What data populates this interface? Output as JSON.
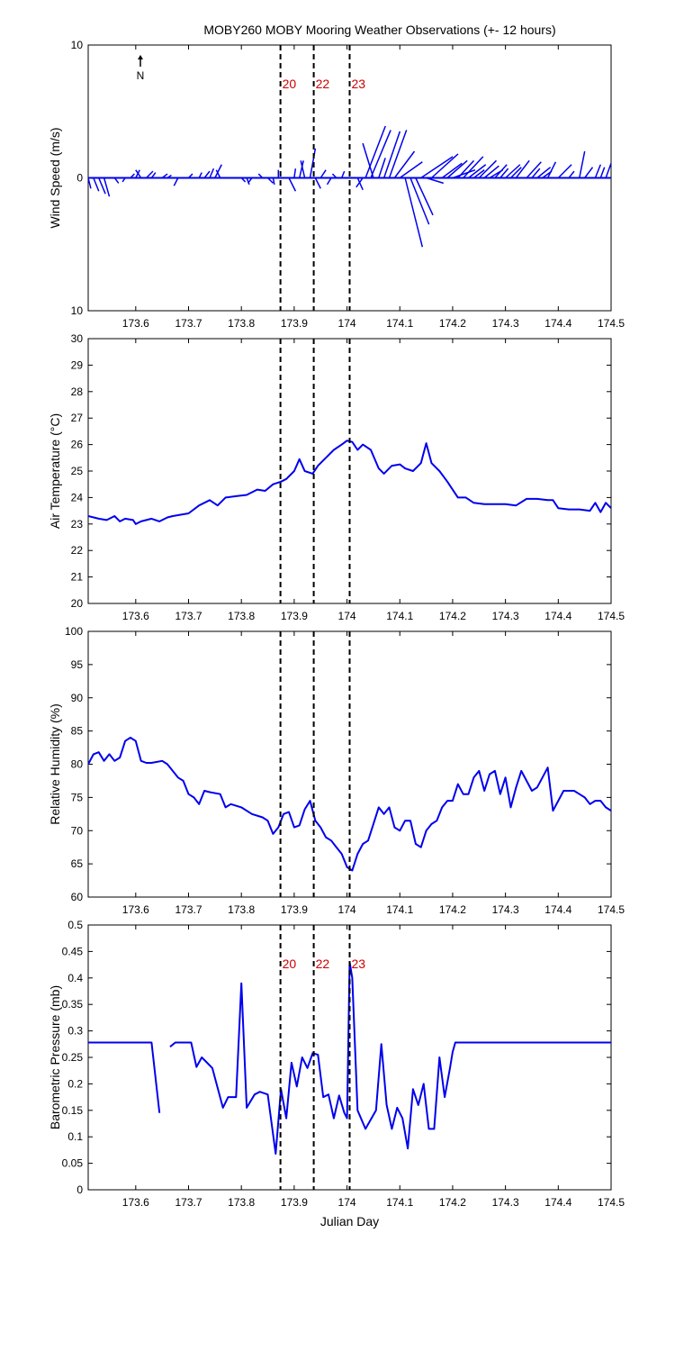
{
  "figure_title": "MOBY260 MOBY Mooring Weather Observations (+- 12 hours)",
  "north_label": "N",
  "colors": {
    "series": "#0000ee",
    "marker_line": "#000000",
    "marker_text": "#cc0000",
    "axes": "#000000"
  },
  "markers": {
    "x": [
      173.874,
      173.937,
      174.005
    ],
    "labels": [
      "20",
      "22",
      "23"
    ]
  },
  "chart_data": [
    {
      "type": "quiver",
      "title": "",
      "xlabel": "",
      "ylabel": "Wind Speed (m/s)",
      "xlim": [
        173.51,
        174.5
      ],
      "ylim": [
        -10,
        10
      ],
      "yticks": [
        10,
        0,
        -10
      ],
      "ytick_labels": [
        "10",
        "0",
        "10"
      ],
      "xticks": [
        173.6,
        173.7,
        173.8,
        173.9,
        174,
        174.1,
        174.2,
        174.3,
        174.4,
        174.5
      ],
      "xtick_labels": [
        "173.6",
        "173.7",
        "173.8",
        "173.9",
        "174",
        "174.1",
        "174.2",
        "174.3",
        "174.4",
        "174.5"
      ],
      "marker_labels": true,
      "vectors": [
        {
          "x": 173.51,
          "u": 0.2,
          "v": -0.8
        },
        {
          "x": 173.52,
          "u": 0.4,
          "v": -1.0
        },
        {
          "x": 173.53,
          "u": 0.5,
          "v": -1.2
        },
        {
          "x": 173.54,
          "u": 0.4,
          "v": -1.4
        },
        {
          "x": 173.56,
          "u": 0.3,
          "v": -0.4
        },
        {
          "x": 173.58,
          "u": -0.2,
          "v": -0.3
        },
        {
          "x": 173.59,
          "u": 0.3,
          "v": 0.3
        },
        {
          "x": 173.6,
          "u": 0.3,
          "v": 0.6
        },
        {
          "x": 173.61,
          "u": -0.4,
          "v": 0.6
        },
        {
          "x": 173.62,
          "u": 0.5,
          "v": 0.5
        },
        {
          "x": 173.63,
          "u": 0.3,
          "v": 0.4
        },
        {
          "x": 173.65,
          "u": 0.4,
          "v": 0.3
        },
        {
          "x": 173.66,
          "u": 0.3,
          "v": 0.2
        },
        {
          "x": 173.68,
          "u": -0.3,
          "v": -0.6
        },
        {
          "x": 173.7,
          "u": 0.3,
          "v": 0.3
        },
        {
          "x": 173.72,
          "u": 0.2,
          "v": 0.4
        },
        {
          "x": 173.73,
          "u": 0.4,
          "v": 0.5
        },
        {
          "x": 173.74,
          "u": 0.3,
          "v": 0.7
        },
        {
          "x": 173.75,
          "u": 0.5,
          "v": 1.0
        },
        {
          "x": 173.76,
          "u": -0.3,
          "v": 0.6
        },
        {
          "x": 173.8,
          "u": 0.3,
          "v": -0.3
        },
        {
          "x": 173.81,
          "u": 0.2,
          "v": -0.5
        },
        {
          "x": 173.82,
          "u": -0.3,
          "v": -0.4
        },
        {
          "x": 173.84,
          "u": -0.3,
          "v": 0.3
        },
        {
          "x": 173.85,
          "u": 0.4,
          "v": -0.4
        },
        {
          "x": 173.86,
          "u": 0.1,
          "v": -0.5
        },
        {
          "x": 173.87,
          "u": 0.0,
          "v": 0.6
        },
        {
          "x": 173.89,
          "u": 0.5,
          "v": -1.0
        },
        {
          "x": 173.9,
          "u": 0.1,
          "v": 0.7
        },
        {
          "x": 173.91,
          "u": 0.3,
          "v": 1.3
        },
        {
          "x": 173.92,
          "u": -0.3,
          "v": 1.3
        },
        {
          "x": 173.93,
          "u": 0.4,
          "v": 2.2
        },
        {
          "x": 173.94,
          "u": 0.4,
          "v": -0.8
        },
        {
          "x": 173.95,
          "u": 0.4,
          "v": 0.6
        },
        {
          "x": 173.97,
          "u": -0.3,
          "v": -0.5
        },
        {
          "x": 173.98,
          "u": -0.3,
          "v": 0.3
        },
        {
          "x": 173.99,
          "u": 0.2,
          "v": 0.5
        },
        {
          "x": 174.02,
          "u": 0.4,
          "v": -0.9
        },
        {
          "x": 174.03,
          "u": -0.5,
          "v": -0.7
        },
        {
          "x": 174.035,
          "u": 1.5,
          "v": 3.9
        },
        {
          "x": 174.045,
          "u": 1.5,
          "v": 3.6
        },
        {
          "x": 174.05,
          "u": -0.8,
          "v": 2.6
        },
        {
          "x": 174.06,
          "u": 0.5,
          "v": 1.5
        },
        {
          "x": 174.07,
          "u": 1.2,
          "v": 3.5
        },
        {
          "x": 174.08,
          "u": 1.3,
          "v": 3.6
        },
        {
          "x": 174.09,
          "u": 1.5,
          "v": 2.0
        },
        {
          "x": 174.1,
          "u": 1.7,
          "v": 1.2
        },
        {
          "x": 174.11,
          "u": 1.3,
          "v": -5.2
        },
        {
          "x": 174.12,
          "u": 1.4,
          "v": -3.5
        },
        {
          "x": 174.13,
          "u": 1.3,
          "v": -2.8
        },
        {
          "x": 174.14,
          "u": 2.4,
          "v": 1.6
        },
        {
          "x": 174.15,
          "u": 1.3,
          "v": -0.4
        },
        {
          "x": 174.16,
          "u": 2.0,
          "v": 1.8
        },
        {
          "x": 174.18,
          "u": 1.5,
          "v": 1.1
        },
        {
          "x": 174.19,
          "u": 1.5,
          "v": 1.3
        },
        {
          "x": 174.2,
          "u": 1.7,
          "v": 0.6
        },
        {
          "x": 174.21,
          "u": 1.2,
          "v": 1.3
        },
        {
          "x": 174.22,
          "u": 1.5,
          "v": 1.6
        },
        {
          "x": 174.23,
          "u": 1.3,
          "v": 1.0
        },
        {
          "x": 174.24,
          "u": 0.8,
          "v": 0.6
        },
        {
          "x": 174.25,
          "u": 1.3,
          "v": 1.3
        },
        {
          "x": 174.26,
          "u": 1.1,
          "v": 0.9
        },
        {
          "x": 174.27,
          "u": 1.0,
          "v": 0.6
        },
        {
          "x": 174.28,
          "u": 0.9,
          "v": 1.0
        },
        {
          "x": 174.29,
          "u": 0.6,
          "v": 0.7
        },
        {
          "x": 174.3,
          "u": 1.1,
          "v": 1.0
        },
        {
          "x": 174.31,
          "u": 0.8,
          "v": 0.8
        },
        {
          "x": 174.32,
          "u": 1.0,
          "v": 1.3
        },
        {
          "x": 174.34,
          "u": 1.1,
          "v": 1.2
        },
        {
          "x": 174.35,
          "u": 0.6,
          "v": 0.7
        },
        {
          "x": 174.36,
          "u": 1.0,
          "v": 0.8
        },
        {
          "x": 174.37,
          "u": 0.7,
          "v": 0.5
        },
        {
          "x": 174.38,
          "u": 0.6,
          "v": 1.2
        },
        {
          "x": 174.4,
          "u": 1.0,
          "v": 1.0
        },
        {
          "x": 174.42,
          "u": 0.4,
          "v": 0.5
        },
        {
          "x": 174.44,
          "u": 0.4,
          "v": 2.0
        },
        {
          "x": 174.45,
          "u": 0.6,
          "v": 0.8
        },
        {
          "x": 174.47,
          "u": 0.4,
          "v": 1.0
        },
        {
          "x": 174.48,
          "u": 0.3,
          "v": 0.8
        },
        {
          "x": 174.49,
          "u": 0.4,
          "v": 1.1
        }
      ]
    },
    {
      "type": "line",
      "title": "",
      "xlabel": "",
      "ylabel": "Air Temperature (°C)",
      "xlim": [
        173.51,
        174.5
      ],
      "ylim": [
        20,
        30
      ],
      "yticks": [
        20,
        21,
        22,
        23,
        24,
        25,
        26,
        27,
        28,
        29,
        30
      ],
      "ytick_labels": [
        "20",
        "21",
        "22",
        "23",
        "24",
        "25",
        "26",
        "27",
        "28",
        "29",
        "30"
      ],
      "xticks": [
        173.6,
        173.7,
        173.8,
        173.9,
        174,
        174.1,
        174.2,
        174.3,
        174.4,
        174.5
      ],
      "xtick_labels": [
        "173.6",
        "173.7",
        "173.8",
        "173.9",
        "174",
        "174.1",
        "174.2",
        "174.3",
        "174.4",
        "174.5"
      ],
      "marker_labels": false,
      "x": [
        173.51,
        173.53,
        173.545,
        173.56,
        173.57,
        173.58,
        173.595,
        173.6,
        173.61,
        173.63,
        173.645,
        173.66,
        173.67,
        173.685,
        173.7,
        173.72,
        173.74,
        173.755,
        173.77,
        173.79,
        173.81,
        173.83,
        173.845,
        173.86,
        173.875,
        173.885,
        173.9,
        173.91,
        173.92,
        173.935,
        173.945,
        173.96,
        173.975,
        173.99,
        174.0,
        174.01,
        174.02,
        174.03,
        174.045,
        174.06,
        174.07,
        174.085,
        174.1,
        174.11,
        174.125,
        174.14,
        174.15,
        174.16,
        174.175,
        174.19,
        174.2,
        174.21,
        174.225,
        174.24,
        174.26,
        174.28,
        174.3,
        174.32,
        174.34,
        174.36,
        174.38,
        174.39,
        174.4,
        174.42,
        174.44,
        174.46,
        174.47,
        174.48,
        174.49,
        174.5
      ],
      "y": [
        23.3,
        23.2,
        23.15,
        23.3,
        23.1,
        23.2,
        23.15,
        23.0,
        23.1,
        23.2,
        23.1,
        23.25,
        23.3,
        23.35,
        23.4,
        23.7,
        23.9,
        23.7,
        24.0,
        24.05,
        24.1,
        24.3,
        24.25,
        24.5,
        24.6,
        24.7,
        25.0,
        25.45,
        25.0,
        24.9,
        25.2,
        25.5,
        25.8,
        26.0,
        26.15,
        26.1,
        25.8,
        26.0,
        25.8,
        25.1,
        24.9,
        25.2,
        25.25,
        25.1,
        25.0,
        25.3,
        26.05,
        25.3,
        25.0,
        24.6,
        24.3,
        24.0,
        24.0,
        23.8,
        23.75,
        23.75,
        23.75,
        23.7,
        23.95,
        23.95,
        23.9,
        23.9,
        23.6,
        23.55,
        23.55,
        23.5,
        23.8,
        23.45,
        23.8,
        23.6
      ]
    },
    {
      "type": "line",
      "title": "",
      "xlabel": "",
      "ylabel": "Relative Humidity (%)",
      "xlim": [
        173.51,
        174.5
      ],
      "ylim": [
        60,
        100
      ],
      "yticks": [
        60,
        65,
        70,
        75,
        80,
        85,
        90,
        95,
        100
      ],
      "ytick_labels": [
        "60",
        "65",
        "70",
        "75",
        "80",
        "85",
        "90",
        "95",
        "100"
      ],
      "xticks": [
        173.6,
        173.7,
        173.8,
        173.9,
        174,
        174.1,
        174.2,
        174.3,
        174.4,
        174.5
      ],
      "xtick_labels": [
        "173.6",
        "173.7",
        "173.8",
        "173.9",
        "174",
        "174.1",
        "174.2",
        "174.3",
        "174.4",
        "174.5"
      ],
      "marker_labels": false,
      "x": [
        173.51,
        173.52,
        173.53,
        173.54,
        173.55,
        173.56,
        173.57,
        173.58,
        173.59,
        173.6,
        173.61,
        173.62,
        173.63,
        173.65,
        173.66,
        173.68,
        173.69,
        173.7,
        173.71,
        173.72,
        173.73,
        173.74,
        173.76,
        173.77,
        173.78,
        173.8,
        173.82,
        173.84,
        173.85,
        173.86,
        173.87,
        173.88,
        173.89,
        173.9,
        173.91,
        173.92,
        173.93,
        173.94,
        173.95,
        173.96,
        173.97,
        173.98,
        173.99,
        174.0,
        174.01,
        174.02,
        174.03,
        174.04,
        174.05,
        174.06,
        174.07,
        174.08,
        174.09,
        174.1,
        174.11,
        174.12,
        174.13,
        174.14,
        174.15,
        174.16,
        174.17,
        174.18,
        174.19,
        174.2,
        174.21,
        174.22,
        174.23,
        174.24,
        174.25,
        174.26,
        174.27,
        174.28,
        174.29,
        174.3,
        174.31,
        174.32,
        174.33,
        174.35,
        174.36,
        174.37,
        174.38,
        174.39,
        174.4,
        174.41,
        174.42,
        174.43,
        174.44,
        174.45,
        174.46,
        174.47,
        174.48,
        174.49,
        174.5
      ],
      "y": [
        80.0,
        81.5,
        81.8,
        80.5,
        81.5,
        80.5,
        81.0,
        83.5,
        84.0,
        83.5,
        80.5,
        80.2,
        80.2,
        80.5,
        80.0,
        78.0,
        77.5,
        75.5,
        75.0,
        74.0,
        76.0,
        75.8,
        75.5,
        73.5,
        74.0,
        73.5,
        72.5,
        72.0,
        71.5,
        69.5,
        70.5,
        72.5,
        72.8,
        70.5,
        70.8,
        73.2,
        74.5,
        71.5,
        70.5,
        69.0,
        68.5,
        67.5,
        66.5,
        64.5,
        64.0,
        66.5,
        68.0,
        68.5,
        71.0,
        73.5,
        72.5,
        73.5,
        70.5,
        70.0,
        71.5,
        71.5,
        68.0,
        67.5,
        70.0,
        71.0,
        71.5,
        73.5,
        74.5,
        74.5,
        77.0,
        75.5,
        75.5,
        78.0,
        79.0,
        76.0,
        78.5,
        79.0,
        75.5,
        78.0,
        73.5,
        76.5,
        79.0,
        76.0,
        76.5,
        78.0,
        79.5,
        73.0,
        74.5,
        76.0,
        76.0,
        76.0,
        75.5,
        75.0,
        74.0,
        74.5,
        74.5,
        73.5,
        73.0
      ]
    },
    {
      "type": "line",
      "title": "",
      "xlabel": "Julian Day",
      "ylabel": "Barometric Pressure (mb)",
      "xlim": [
        173.51,
        174.5
      ],
      "ylim": [
        0,
        0.5
      ],
      "yticks": [
        0,
        0.05,
        0.1,
        0.15,
        0.2,
        0.25,
        0.3,
        0.35,
        0.4,
        0.45,
        0.5
      ],
      "ytick_labels": [
        "0",
        "0.05",
        "0.1",
        "0.15",
        "0.2",
        "0.25",
        "0.3",
        "0.35",
        "0.4",
        "0.45",
        "0.5"
      ],
      "xticks": [
        173.6,
        173.7,
        173.8,
        173.9,
        174,
        174.1,
        174.2,
        174.3,
        174.4,
        174.5
      ],
      "xtick_labels": [
        "173.6",
        "173.7",
        "173.8",
        "173.9",
        "174",
        "174.1",
        "174.2",
        "174.3",
        "174.4",
        "174.5"
      ],
      "marker_labels": true,
      "segments": [
        {
          "x": [
            173.51,
            173.63,
            173.645
          ],
          "y": [
            0.278,
            0.278,
            0.145
          ]
        },
        {
          "x": [
            173.665,
            173.675,
            173.705,
            173.715,
            173.725,
            173.745,
            173.765,
            173.775,
            173.79,
            173.8,
            173.81,
            173.825,
            173.835,
            173.85,
            173.865,
            173.875,
            173.885,
            173.895,
            173.905,
            173.915,
            173.925,
            173.935,
            173.945,
            173.955,
            173.965,
            173.975,
            173.985,
            173.995,
            174.0,
            174.005,
            174.01,
            174.02,
            174.035,
            174.055,
            174.065,
            174.075,
            174.085,
            174.095,
            174.105,
            174.115,
            174.125,
            174.135,
            174.145,
            174.155,
            174.165,
            174.175,
            174.185,
            174.195,
            174.2,
            174.205,
            174.5
          ],
          "y": [
            0.27,
            0.278,
            0.278,
            0.232,
            0.25,
            0.23,
            0.155,
            0.175,
            0.175,
            0.39,
            0.155,
            0.18,
            0.185,
            0.18,
            0.068,
            0.19,
            0.135,
            0.24,
            0.195,
            0.25,
            0.23,
            0.258,
            0.255,
            0.175,
            0.18,
            0.135,
            0.178,
            0.145,
            0.135,
            0.43,
            0.4,
            0.15,
            0.115,
            0.15,
            0.275,
            0.16,
            0.115,
            0.155,
            0.135,
            0.078,
            0.19,
            0.16,
            0.2,
            0.115,
            0.115,
            0.25,
            0.175,
            0.23,
            0.26,
            0.278,
            0.278
          ]
        }
      ]
    }
  ]
}
